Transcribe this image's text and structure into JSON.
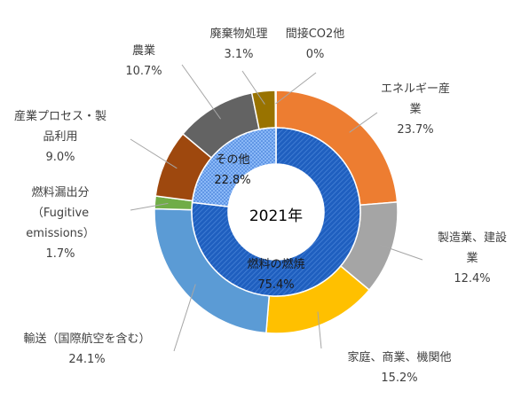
{
  "chart_data": {
    "type": "pie",
    "subtype": "doughnut",
    "center_label": "2021年",
    "outer_ring": [
      {
        "name": "エネルギー産業",
        "label_lines": [
          "エネルギー産",
          "業"
        ],
        "value_label": "23.7%",
        "value": 23.7,
        "color": "#ED7D31"
      },
      {
        "name": "製造業、建設業",
        "label_lines": [
          "製造業、建設",
          "業"
        ],
        "value_label": "12.4%",
        "value": 12.4,
        "color": "#A5A5A5"
      },
      {
        "name": "家庭、商業、機関他",
        "label_lines": [
          "家庭、商業、機関他"
        ],
        "value_label": "15.2%",
        "value": 15.2,
        "color": "#FFC000"
      },
      {
        "name": "輸送（国際航空を含む）",
        "label_lines": [
          "輸送（国際航空を含む）"
        ],
        "value_label": "24.1%",
        "value": 24.1,
        "color": "#5B9BD5"
      },
      {
        "name": "燃料漏出分（Fugitive emissions）",
        "label_lines": [
          "燃料漏出分",
          "（Fugitive",
          "emissions）"
        ],
        "value_label": "1.7%",
        "value": 1.7,
        "color": "#70AD47"
      },
      {
        "name": "産業プロセス・製品利用",
        "label_lines": [
          "産業プロセス・製",
          "品利用"
        ],
        "value_label": "9.0%",
        "value": 9.0,
        "color": "#9E480E"
      },
      {
        "name": "農業",
        "label_lines": [
          "農業"
        ],
        "value_label": "10.7%",
        "value": 10.7,
        "color": "#636363"
      },
      {
        "name": "廃棄物処理",
        "label_lines": [
          "廃棄物処理"
        ],
        "value_label": "3.1%",
        "value": 3.1,
        "color": "#997300"
      },
      {
        "name": "間接CO2他",
        "label_lines": [
          "間接CO2他"
        ],
        "value_label": "0%",
        "value": 0.1,
        "color": "#264478"
      }
    ],
    "inner_ring": [
      {
        "name": "燃料の燃焼",
        "value_label": "75.4%",
        "value": 75.4,
        "color": "#1F5FBF",
        "pattern": "diagonal-stripes"
      },
      {
        "name": "その他",
        "value_label": "22.8%",
        "value": 22.8,
        "color": "#6FA8F5",
        "pattern": "dots"
      }
    ]
  }
}
